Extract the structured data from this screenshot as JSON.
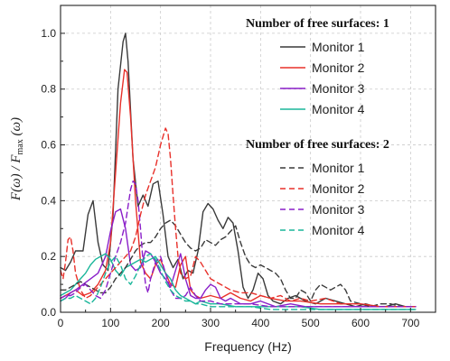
{
  "chart_data": {
    "type": "line",
    "xlabel": "Frequency (Hz)",
    "ylabel": {
      "main": "F(ω) / F",
      "sub": "max",
      "tail": " (ω)"
    },
    "xlim": [
      0,
      750
    ],
    "ylim": [
      0,
      1.1
    ],
    "xticks": [
      "0",
      "100",
      "200",
      "300",
      "400",
      "500",
      "600",
      "700"
    ],
    "yticks": [
      "0.0",
      "0.2",
      "0.4",
      "0.6",
      "0.8",
      "1.0"
    ],
    "grid": true,
    "legend_groups": [
      {
        "title": "Number of free surfaces: 1",
        "line_style": "solid",
        "entries": [
          "Monitor 1",
          "Monitor 2",
          "Monitor 3",
          "Monitor 4"
        ]
      },
      {
        "title": "Number of free surfaces: 2",
        "line_style": "dashed",
        "entries": [
          "Monitor 1",
          "Monitor 2",
          "Monitor 3",
          "Monitor 4"
        ]
      }
    ],
    "colors": {
      "Monitor 1": "#3a3a3a",
      "Monitor 2": "#e8302a",
      "Monitor 3": "#8a1fc9",
      "Monitor 4": "#1ab69a"
    },
    "series": [
      {
        "group": 0,
        "monitor": "Monitor 1",
        "x": [
          0,
          10,
          20,
          30,
          45,
          55,
          65,
          75,
          85,
          95,
          105,
          115,
          125,
          130,
          135,
          145,
          155,
          165,
          175,
          185,
          195,
          205,
          215,
          225,
          235,
          245,
          255,
          265,
          275,
          285,
          295,
          305,
          315,
          325,
          335,
          345,
          355,
          365,
          375,
          385,
          395,
          405,
          415,
          425,
          440,
          455,
          470,
          490,
          510,
          530,
          550,
          570,
          590,
          610,
          630,
          650,
          670,
          690,
          710
        ],
        "y": [
          0.16,
          0.15,
          0.18,
          0.22,
          0.22,
          0.35,
          0.4,
          0.25,
          0.17,
          0.15,
          0.35,
          0.8,
          0.97,
          1.0,
          0.9,
          0.55,
          0.38,
          0.42,
          0.38,
          0.46,
          0.47,
          0.35,
          0.2,
          0.16,
          0.19,
          0.12,
          0.15,
          0.14,
          0.22,
          0.36,
          0.39,
          0.37,
          0.33,
          0.3,
          0.34,
          0.32,
          0.22,
          0.09,
          0.05,
          0.08,
          0.14,
          0.12,
          0.06,
          0.04,
          0.03,
          0.05,
          0.06,
          0.04,
          0.03,
          0.05,
          0.04,
          0.03,
          0.02,
          0.03,
          0.02,
          0.02,
          0.03,
          0.02,
          0.02
        ]
      },
      {
        "group": 0,
        "monitor": "Monitor 2",
        "x": [
          0,
          10,
          20,
          30,
          45,
          60,
          75,
          90,
          100,
          110,
          120,
          128,
          133,
          140,
          150,
          160,
          170,
          180,
          190,
          200,
          210,
          220,
          230,
          240,
          250,
          260,
          270,
          280,
          300,
          320,
          340,
          360,
          380,
          400,
          420,
          450,
          480,
          520,
          560,
          600,
          640,
          680,
          710
        ],
        "y": [
          0.05,
          0.06,
          0.07,
          0.08,
          0.06,
          0.07,
          0.1,
          0.15,
          0.25,
          0.5,
          0.75,
          0.87,
          0.86,
          0.7,
          0.4,
          0.18,
          0.14,
          0.12,
          0.17,
          0.19,
          0.14,
          0.1,
          0.09,
          0.17,
          0.2,
          0.08,
          0.06,
          0.05,
          0.06,
          0.05,
          0.07,
          0.05,
          0.04,
          0.06,
          0.05,
          0.04,
          0.04,
          0.03,
          0.03,
          0.03,
          0.02,
          0.02,
          0.02
        ]
      },
      {
        "group": 0,
        "monitor": "Monitor 3",
        "x": [
          0,
          10,
          20,
          30,
          45,
          60,
          75,
          90,
          100,
          110,
          120,
          130,
          140,
          150,
          160,
          170,
          180,
          190,
          200,
          210,
          220,
          230,
          240,
          250,
          260,
          270,
          280,
          290,
          300,
          310,
          320,
          330,
          340,
          360,
          380,
          400,
          430,
          460,
          490,
          530,
          570,
          610,
          650,
          690,
          710
        ],
        "y": [
          0.04,
          0.05,
          0.07,
          0.08,
          0.1,
          0.12,
          0.14,
          0.2,
          0.29,
          0.36,
          0.37,
          0.3,
          0.17,
          0.15,
          0.16,
          0.22,
          0.21,
          0.18,
          0.14,
          0.12,
          0.09,
          0.15,
          0.21,
          0.12,
          0.06,
          0.05,
          0.05,
          0.08,
          0.1,
          0.09,
          0.05,
          0.04,
          0.05,
          0.03,
          0.03,
          0.04,
          0.02,
          0.03,
          0.02,
          0.02,
          0.02,
          0.02,
          0.02,
          0.02,
          0.02
        ]
      },
      {
        "group": 0,
        "monitor": "Monitor 4",
        "x": [
          0,
          10,
          20,
          30,
          40,
          50,
          60,
          70,
          80,
          90,
          100,
          110,
          120,
          130,
          140,
          150,
          160,
          170,
          180,
          190,
          200,
          210,
          220,
          230,
          240,
          250,
          260,
          270,
          280,
          300,
          320,
          350,
          380,
          410,
          440,
          480,
          520,
          560,
          600,
          640,
          680,
          710
        ],
        "y": [
          0.06,
          0.07,
          0.08,
          0.1,
          0.12,
          0.14,
          0.17,
          0.19,
          0.2,
          0.21,
          0.19,
          0.15,
          0.13,
          0.16,
          0.17,
          0.18,
          0.19,
          0.18,
          0.19,
          0.2,
          0.17,
          0.14,
          0.12,
          0.08,
          0.06,
          0.05,
          0.04,
          0.03,
          0.04,
          0.03,
          0.03,
          0.02,
          0.02,
          0.02,
          0.02,
          0.02,
          0.01,
          0.01,
          0.01,
          0.01,
          0.01,
          0.01
        ]
      },
      {
        "group": 1,
        "monitor": "Monitor 1",
        "x": [
          0,
          10,
          20,
          30,
          40,
          50,
          60,
          70,
          80,
          90,
          100,
          110,
          120,
          130,
          140,
          150,
          160,
          170,
          180,
          190,
          200,
          210,
          220,
          230,
          240,
          250,
          260,
          270,
          280,
          290,
          300,
          310,
          320,
          330,
          340,
          350,
          360,
          370,
          380,
          390,
          400,
          410,
          420,
          430,
          440,
          450,
          460,
          470,
          480,
          490,
          500,
          510,
          520,
          530,
          540,
          550,
          560,
          570,
          580,
          600,
          620,
          640,
          660,
          680,
          700,
          710
        ],
        "y": [
          0.08,
          0.08,
          0.09,
          0.1,
          0.11,
          0.1,
          0.09,
          0.08,
          0.07,
          0.07,
          0.09,
          0.12,
          0.14,
          0.16,
          0.19,
          0.22,
          0.24,
          0.25,
          0.25,
          0.27,
          0.3,
          0.32,
          0.33,
          0.31,
          0.28,
          0.25,
          0.23,
          0.22,
          0.23,
          0.26,
          0.25,
          0.24,
          0.26,
          0.27,
          0.29,
          0.31,
          0.25,
          0.2,
          0.17,
          0.16,
          0.17,
          0.16,
          0.15,
          0.14,
          0.12,
          0.08,
          0.05,
          0.05,
          0.08,
          0.07,
          0.04,
          0.08,
          0.1,
          0.09,
          0.08,
          0.09,
          0.1,
          0.08,
          0.04,
          0.03,
          0.02,
          0.03,
          0.03,
          0.02,
          0.02,
          0.02
        ]
      },
      {
        "group": 1,
        "monitor": "Monitor 2",
        "x": [
          0,
          5,
          10,
          15,
          20,
          25,
          30,
          40,
          50,
          60,
          70,
          80,
          90,
          100,
          110,
          120,
          130,
          140,
          150,
          160,
          170,
          180,
          190,
          200,
          205,
          210,
          215,
          220,
          225,
          230,
          235,
          240,
          250,
          260,
          270,
          280,
          290,
          300,
          320,
          340,
          360,
          380,
          400,
          420,
          440,
          460,
          480,
          500,
          530,
          560,
          600,
          640,
          680,
          710
        ],
        "y": [
          0.15,
          0.12,
          0.18,
          0.26,
          0.27,
          0.22,
          0.14,
          0.08,
          0.05,
          0.06,
          0.08,
          0.1,
          0.12,
          0.14,
          0.16,
          0.18,
          0.2,
          0.22,
          0.27,
          0.35,
          0.42,
          0.47,
          0.52,
          0.6,
          0.63,
          0.66,
          0.64,
          0.55,
          0.42,
          0.3,
          0.2,
          0.14,
          0.12,
          0.13,
          0.2,
          0.18,
          0.15,
          0.12,
          0.1,
          0.08,
          0.07,
          0.07,
          0.06,
          0.05,
          0.06,
          0.04,
          0.05,
          0.04,
          0.05,
          0.03,
          0.03,
          0.02,
          0.02,
          0.02
        ]
      },
      {
        "group": 1,
        "monitor": "Monitor 3",
        "x": [
          0,
          10,
          20,
          30,
          40,
          50,
          60,
          70,
          80,
          90,
          100,
          110,
          120,
          130,
          140,
          145,
          150,
          155,
          160,
          165,
          170,
          175,
          180,
          190,
          200,
          210,
          220,
          230,
          240,
          250,
          260,
          270,
          280,
          300,
          320,
          350,
          380,
          420,
          460,
          500,
          540,
          580,
          620,
          660,
          700,
          710
        ],
        "y": [
          0.05,
          0.06,
          0.06,
          0.07,
          0.09,
          0.1,
          0.08,
          0.06,
          0.05,
          0.08,
          0.14,
          0.2,
          0.25,
          0.32,
          0.44,
          0.47,
          0.46,
          0.4,
          0.3,
          0.18,
          0.1,
          0.07,
          0.12,
          0.18,
          0.2,
          0.14,
          0.08,
          0.05,
          0.05,
          0.06,
          0.09,
          0.06,
          0.04,
          0.04,
          0.03,
          0.03,
          0.03,
          0.02,
          0.02,
          0.02,
          0.02,
          0.02,
          0.02,
          0.02,
          0.02,
          0.02
        ]
      },
      {
        "group": 1,
        "monitor": "Monitor 4",
        "x": [
          0,
          10,
          20,
          30,
          40,
          50,
          60,
          70,
          80,
          90,
          100,
          110,
          120,
          130,
          140,
          150,
          160,
          170,
          180,
          190,
          200,
          210,
          220,
          230,
          240,
          250,
          260,
          270,
          280,
          300,
          320,
          350,
          380,
          420,
          460,
          500,
          540,
          580,
          620,
          660,
          700,
          710
        ],
        "y": [
          0.04,
          0.05,
          0.05,
          0.06,
          0.05,
          0.04,
          0.03,
          0.05,
          0.09,
          0.14,
          0.18,
          0.2,
          0.17,
          0.12,
          0.1,
          0.13,
          0.17,
          0.2,
          0.21,
          0.19,
          0.15,
          0.11,
          0.08,
          0.06,
          0.05,
          0.04,
          0.04,
          0.03,
          0.03,
          0.02,
          0.02,
          0.02,
          0.02,
          0.01,
          0.01,
          0.01,
          0.01,
          0.01,
          0.01,
          0.01,
          0.01,
          0.01
        ]
      }
    ]
  }
}
